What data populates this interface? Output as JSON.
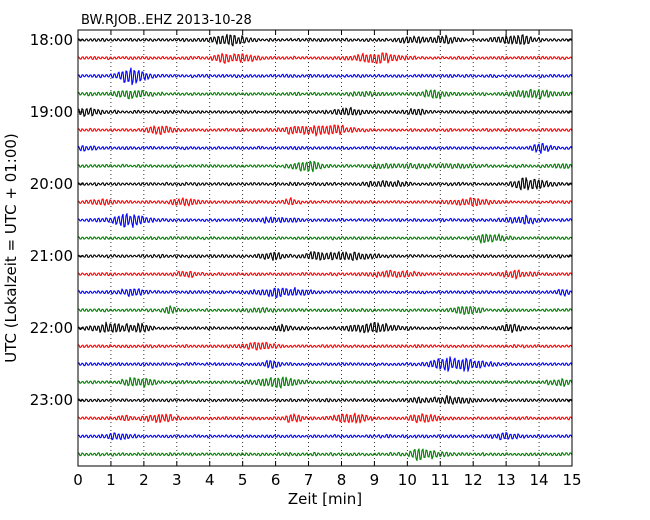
{
  "chart_data": {
    "type": "line",
    "subtype": "seismogram-dayplot",
    "title": "BW.RJOB..EHZ 2013-10-28",
    "xlabel": "Zeit  [min]",
    "ylabel": "UTC (Lokalzeit = UTC + 01:00)",
    "xlim": [
      0,
      15
    ],
    "x_ticks": [
      0,
      1,
      2,
      3,
      4,
      5,
      6,
      7,
      8,
      9,
      10,
      11,
      12,
      13,
      14,
      15
    ],
    "y_tick_labels": [
      "18:00",
      "19:00",
      "20:00",
      "21:00",
      "22:00",
      "23:00"
    ],
    "trace_interval_minutes": 15,
    "trace_count": 24,
    "first_trace_start": "18:00",
    "grid": "vertical dotted at each minute",
    "series": [
      {
        "color": "#000000"
      },
      {
        "color": "#ff0000"
      },
      {
        "color": "#0000ff"
      },
      {
        "color": "#008000"
      }
    ]
  }
}
